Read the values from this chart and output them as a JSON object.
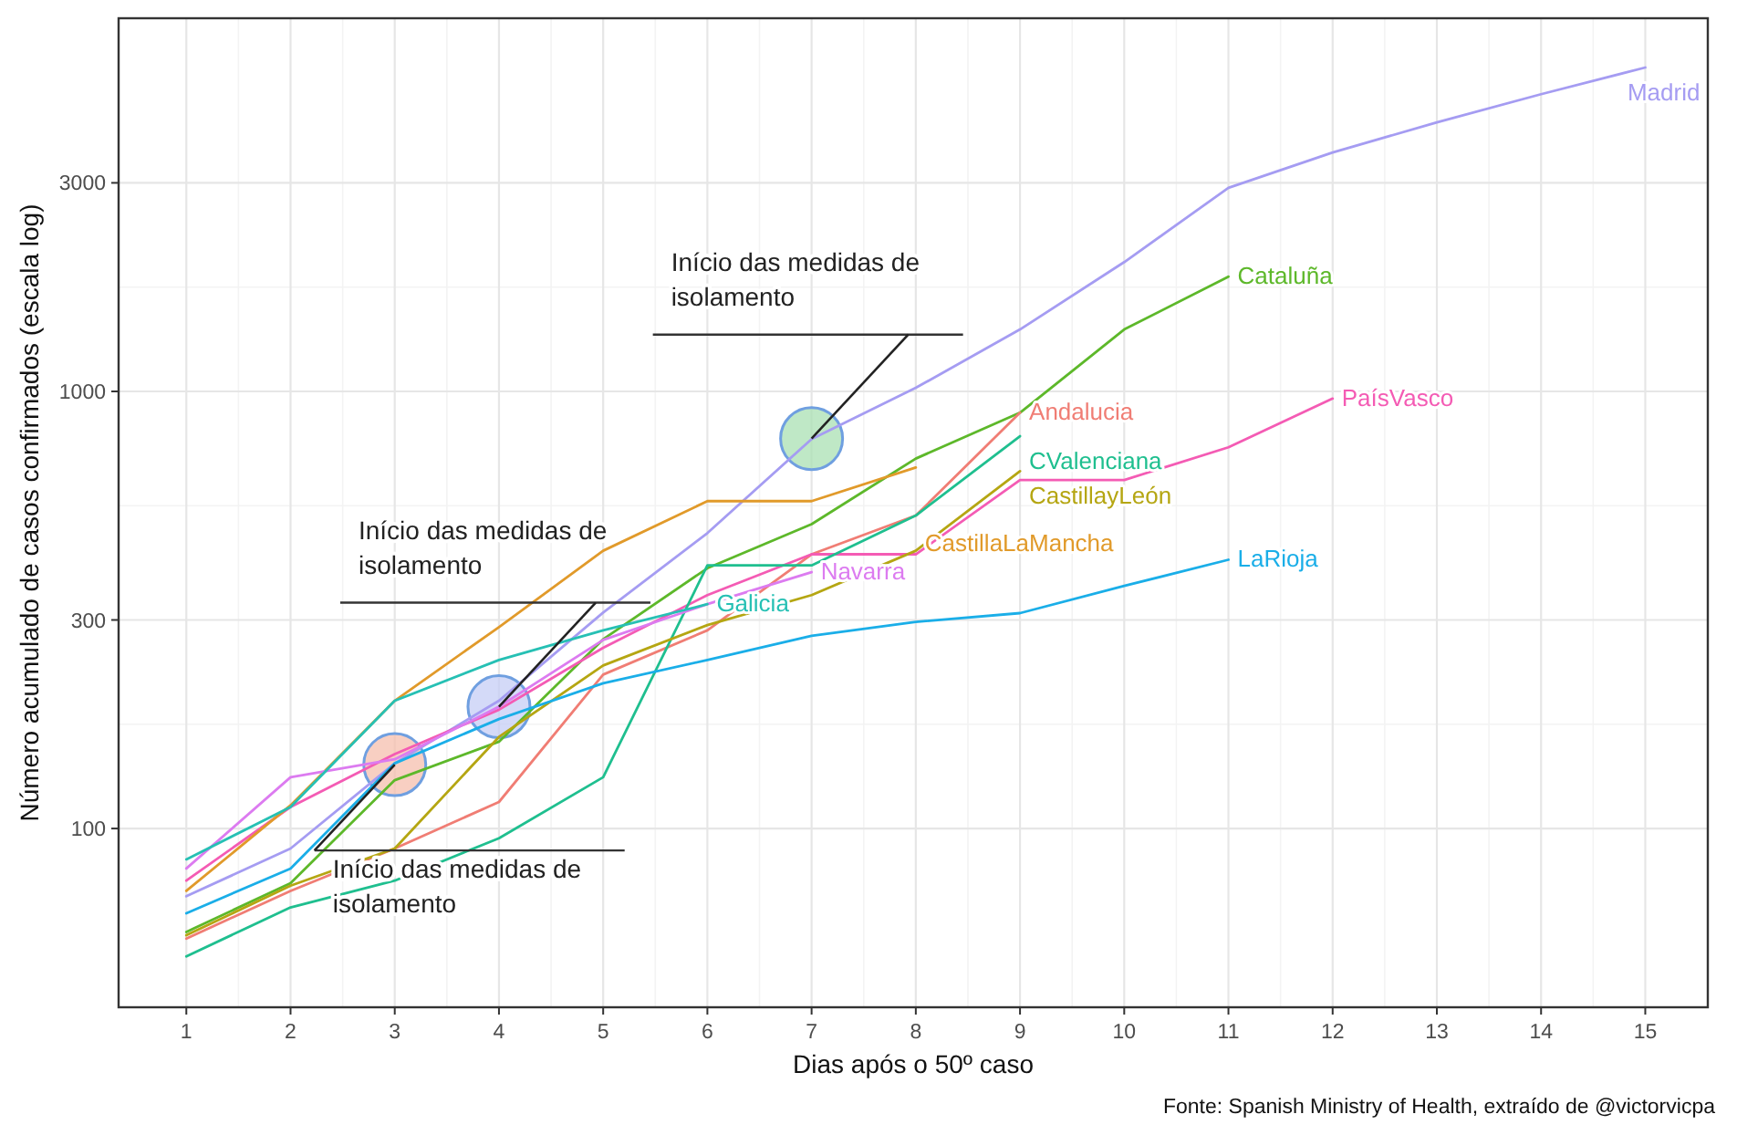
{
  "chart_data": {
    "type": "line",
    "xlabel": "Dias após o 50º caso",
    "ylabel": "Número acumulado de casos confirmados (escala log)",
    "x": [
      1,
      2,
      3,
      4,
      5,
      6,
      7,
      8,
      9,
      10,
      11,
      12,
      13,
      14,
      15
    ],
    "xlim": [
      0.35,
      15.6
    ],
    "xticks": [
      1,
      2,
      3,
      4,
      5,
      6,
      7,
      8,
      9,
      10,
      11,
      12,
      13,
      14,
      15
    ],
    "ylim": [
      39,
      7140
    ],
    "yticks": [
      100,
      300,
      1000,
      3000
    ],
    "log": "y",
    "grid": true,
    "legend": false,
    "series": [
      {
        "name": "Madrid",
        "color": "#a59cf2",
        "values": [
          70,
          90,
          141,
          196,
          312,
          474,
          778,
          1019,
          1386,
          1976,
          2922,
          3520,
          4125,
          4786,
          5508
        ]
      },
      {
        "name": "Cataluña",
        "color": "#5db82a",
        "values": [
          58,
          75,
          129,
          158,
          271,
          394,
          497,
          702,
          894,
          1386,
          1831,
          null,
          null,
          null,
          null
        ]
      },
      {
        "name": "Andalucia",
        "color": "#f07d74",
        "values": [
          56,
          72,
          90,
          115,
          225,
          284,
          424,
          520,
          894,
          null,
          null,
          null,
          null,
          null,
          null
        ]
      },
      {
        "name": "PaísVasco",
        "color": "#f45bb4",
        "values": [
          76,
          112,
          148,
          187,
          259,
          342,
          424,
          424,
          627,
          627,
          745,
          963,
          null,
          null,
          null
        ]
      },
      {
        "name": "CValenciana",
        "color": "#1fbf8f",
        "values": [
          51,
          66,
          76,
          95,
          131,
          400,
          400,
          520,
          790,
          null,
          null,
          null,
          null,
          null,
          null
        ]
      },
      {
        "name": "CastillayLeón",
        "color": "#b5a612",
        "values": [
          57,
          74,
          90,
          162,
          236,
          292,
          342,
          432,
          657,
          null,
          null,
          null,
          null,
          null,
          null
        ]
      },
      {
        "name": "CastillaLaMancha",
        "color": "#e19a2a",
        "values": [
          72,
          113,
          196,
          289,
          432,
          561,
          561,
          670,
          null,
          null,
          null,
          null,
          null,
          null,
          null
        ]
      },
      {
        "name": "LaRioja",
        "color": "#1aaee8",
        "values": [
          64,
          81,
          141,
          178,
          215,
          243,
          276,
          297,
          311,
          359,
          412,
          null,
          null,
          null,
          null
        ]
      },
      {
        "name": "Navarra",
        "color": "#dc7bf0",
        "values": [
          81,
          131,
          144,
          190,
          270,
          326,
          386,
          null,
          null,
          null,
          null,
          null,
          null,
          null,
          null
        ]
      },
      {
        "name": "Galicia",
        "color": "#26c0b4",
        "values": [
          85,
          112,
          196,
          243,
          284,
          326,
          null,
          null,
          null,
          null,
          null,
          null,
          null,
          null,
          null
        ]
      }
    ],
    "annotations": [
      {
        "text": "Início das medidas de isolamento",
        "x": 3,
        "y": 140
      },
      {
        "text": "Início das medidas de isolamento",
        "x": 4,
        "y": 190
      },
      {
        "text": "Início das medidas de isolamento",
        "x": 7,
        "y": 780
      },
      "Fonte: Spanish Ministry of Health, extraído de @victorvicpa"
    ]
  }
}
